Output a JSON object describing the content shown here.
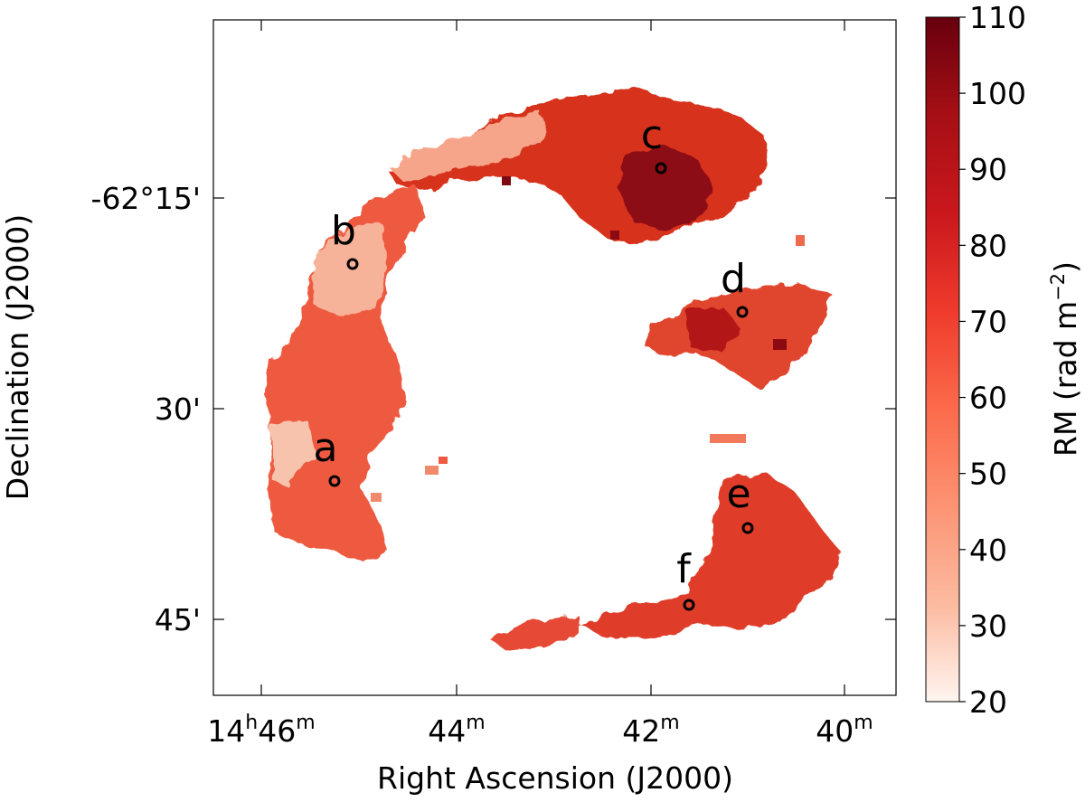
{
  "figure": {
    "xlabel": "Right Ascension (J2000)",
    "ylabel": "Declination (J2000)",
    "x_ticks": [
      {
        "h": "14",
        "hs": "h",
        "m": "46",
        "ms": "m"
      },
      {
        "h": "",
        "hs": "",
        "m": "44",
        "ms": "m"
      },
      {
        "h": "",
        "hs": "",
        "m": "42",
        "ms": "m"
      },
      {
        "h": "",
        "hs": "",
        "m": "40",
        "ms": "m"
      }
    ],
    "y_ticks": [
      "-62°15'",
      "30'",
      "45'"
    ],
    "colorbar": {
      "label": "RM (rad m",
      "label_exp": "−2",
      "label_close": ")",
      "ticks": [
        "20",
        "30",
        "40",
        "50",
        "60",
        "70",
        "80",
        "90",
        "100",
        "110"
      ],
      "range": [
        20,
        110
      ],
      "colors": [
        "#fff5f0",
        "#fcbba1",
        "#fc9272",
        "#fb6a4a",
        "#ef3b2c",
        "#cb181d",
        "#a50f15",
        "#67000d"
      ]
    },
    "markers": [
      {
        "id": "a",
        "label": "a"
      },
      {
        "id": "b",
        "label": "b"
      },
      {
        "id": "c",
        "label": "c"
      },
      {
        "id": "d",
        "label": "d"
      },
      {
        "id": "e",
        "label": "e"
      },
      {
        "id": "f",
        "label": "f"
      }
    ]
  }
}
